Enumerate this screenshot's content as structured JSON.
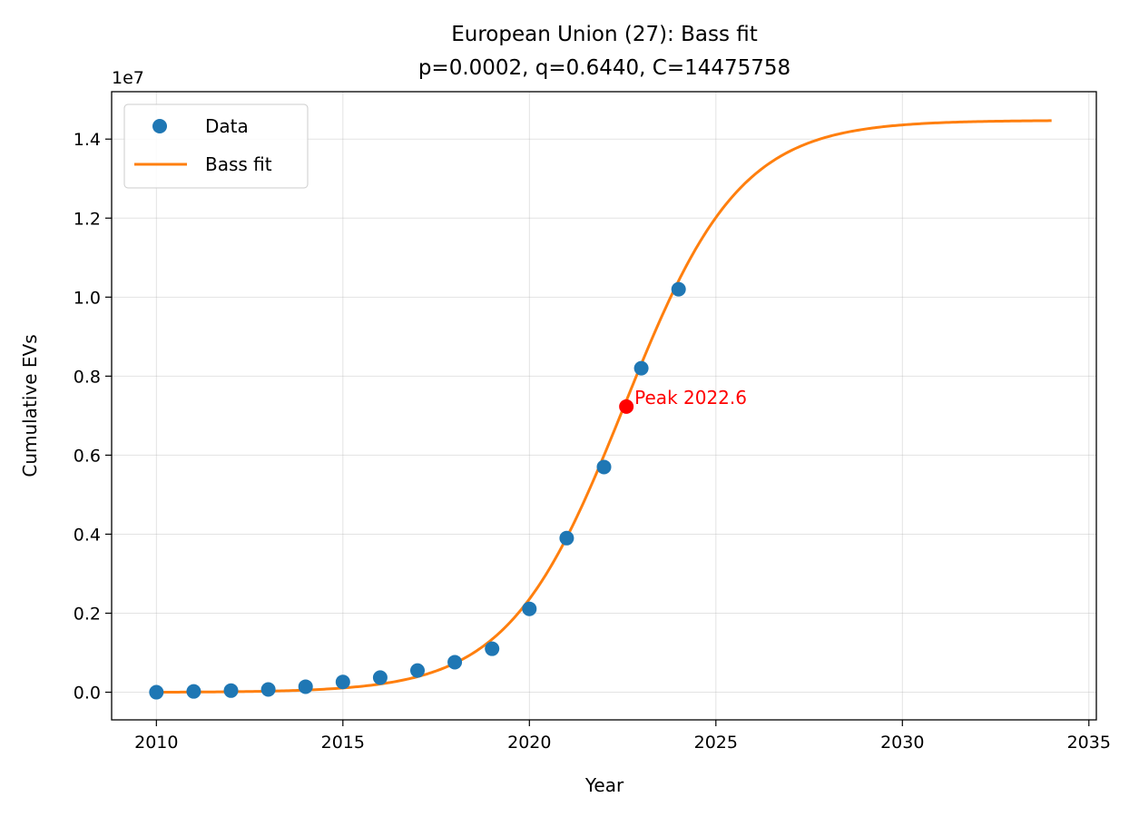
{
  "chart_data": {
    "type": "scatter",
    "title": "European Union (27): Bass fit",
    "subtitle": "p=0.0002, q=0.6440, C=14475758",
    "xlabel": "Year",
    "ylabel": "Cumulative EVs",
    "y_offset_label": "1e7",
    "y_scale": 10000000,
    "xlim": [
      2008.8,
      2035.2
    ],
    "ylim": [
      -700000,
      15200000
    ],
    "x_ticks": [
      2010,
      2015,
      2020,
      2025,
      2030,
      2035
    ],
    "x_tick_labels": [
      "2010",
      "2015",
      "2020",
      "2025",
      "2030",
      "2035"
    ],
    "y_ticks": [
      0,
      2000000,
      4000000,
      6000000,
      8000000,
      10000000,
      12000000,
      14000000
    ],
    "y_tick_labels": [
      "0.0",
      "0.2",
      "0.4",
      "0.6",
      "0.8",
      "1.0",
      "1.2",
      "1.4"
    ],
    "grid": true,
    "legend_position": "top-left",
    "series": [
      {
        "name": "Data",
        "kind": "scatter",
        "color": "#1f77b4",
        "x": [
          2010,
          2011,
          2012,
          2013,
          2014,
          2015,
          2016,
          2017,
          2018,
          2019,
          2020,
          2021,
          2022,
          2023,
          2024
        ],
        "y": [
          0,
          20000,
          40000,
          70000,
          140000,
          260000,
          370000,
          550000,
          760000,
          1100000,
          2110000,
          3900000,
          5700000,
          8200000,
          10200000
        ]
      },
      {
        "name": "Bass fit",
        "kind": "line",
        "color": "#ff7f0e",
        "model": {
          "p": 0.0002,
          "q": 0.644,
          "C": 14475758,
          "t0": 2010
        },
        "x_range": [
          2010,
          2034
        ]
      }
    ],
    "annotations": [
      {
        "text": "Peak 2022.6",
        "x": 2022.6,
        "y": 7230000,
        "color": "#ff0000"
      }
    ]
  }
}
